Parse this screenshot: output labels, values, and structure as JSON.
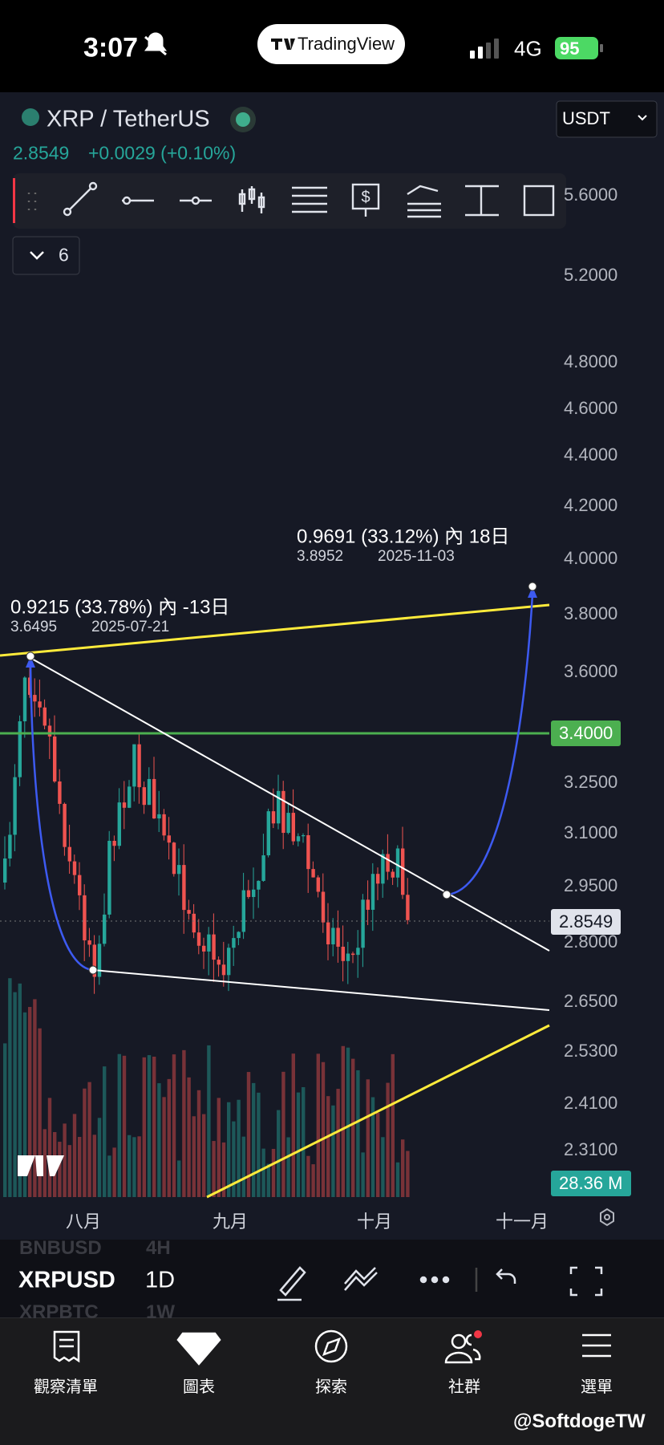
{
  "status_bar": {
    "time": "3:07",
    "app": "TradingView",
    "network": "4G",
    "battery": "95"
  },
  "header": {
    "symbol": "XRP / TetherUS",
    "currency": "USDT",
    "price": "2.8549",
    "change": "+0.0029 (+0.10%)"
  },
  "indicator_toggle": "6",
  "price_axis": [
    "5.6000",
    "5.2000",
    "4.8000",
    "4.6000",
    "4.4000",
    "4.2000",
    "4.0000",
    "3.8000",
    "3.6000",
    "3.2500",
    "3.1000",
    "2.9500",
    "2.8000",
    "2.6500",
    "2.5300",
    "2.4100",
    "2.3100"
  ],
  "price_badges": {
    "level": "3.4000",
    "last": "2.8549",
    "volume": "28.36 M"
  },
  "annotations": [
    {
      "measure": "0.9691 (33.12%) 內 18日",
      "price": "3.8952",
      "date": "2025-11-03"
    },
    {
      "measure": "0.9215 (33.78%) 內 -13日",
      "price": "3.6495",
      "date": "2025-07-21"
    }
  ],
  "time_axis": [
    "八月",
    "九月",
    "十月",
    "十一月"
  ],
  "symbol_picker": [
    {
      "symbol": "BNBUSD",
      "interval": "4H"
    },
    {
      "symbol": "XRPUSD",
      "interval": "1D"
    },
    {
      "symbol": "XRPBTC",
      "interval": "1W"
    }
  ],
  "tabs": [
    "觀察清單",
    "圖表",
    "探索",
    "社群",
    "選單"
  ],
  "watermark": "@SoftdogeTW"
}
